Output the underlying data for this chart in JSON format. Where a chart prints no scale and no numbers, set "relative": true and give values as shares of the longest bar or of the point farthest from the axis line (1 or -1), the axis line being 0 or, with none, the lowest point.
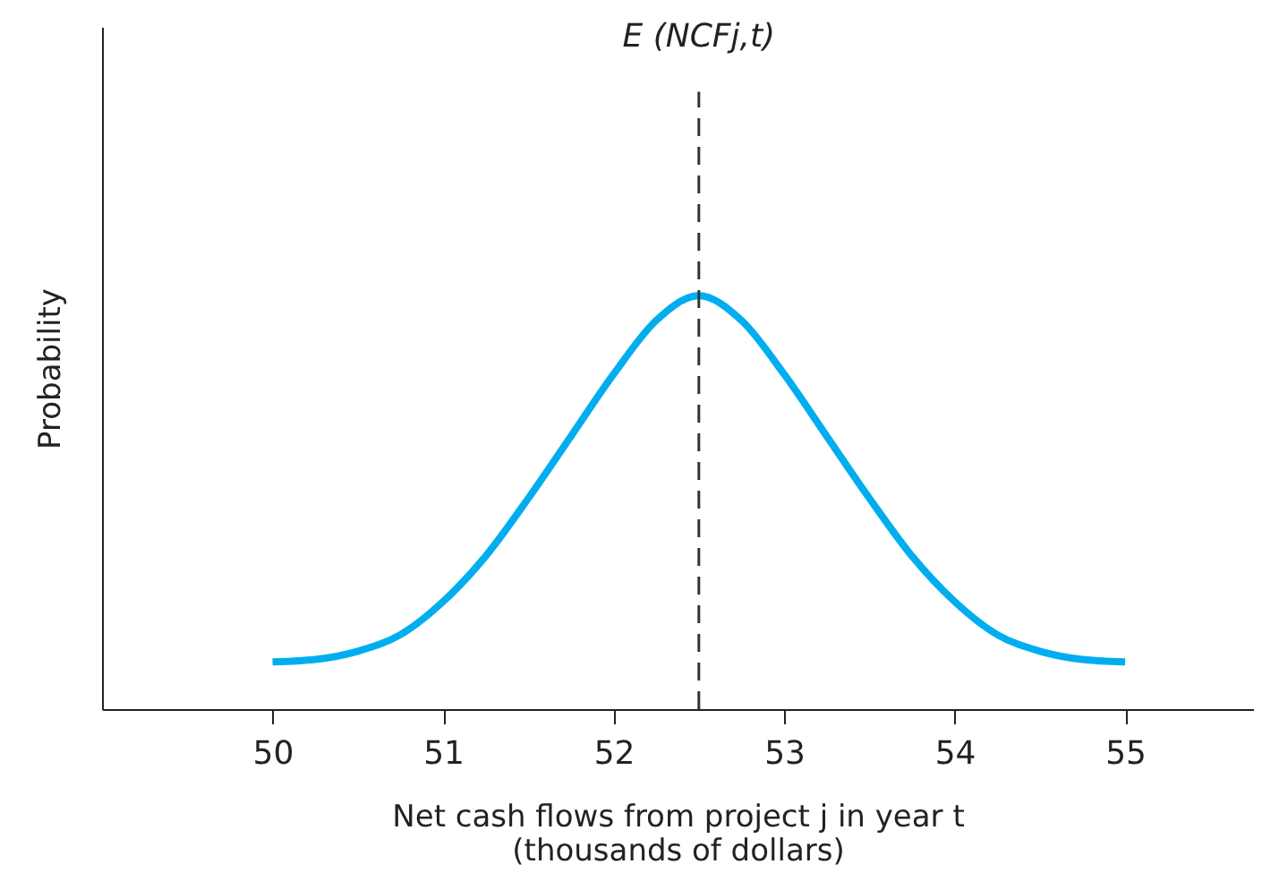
{
  "chart_data": {
    "type": "line",
    "relative": true,
    "xlabel": "Net cash flows from project j in year t\n(thousands of dollars)",
    "ylabel": "Probability",
    "x": [
      50,
      50.25,
      50.5,
      50.75,
      51,
      51.25,
      51.5,
      51.75,
      52,
      52.25,
      52.5,
      52.75,
      53,
      53.25,
      53.5,
      53.75,
      54,
      54.25,
      54.5,
      54.75,
      55
    ],
    "series": [
      {
        "color": "#00aeef",
        "values": [
          0.114,
          0.12,
          0.14,
          0.18,
          0.26,
          0.37,
          0.51,
          0.66,
          0.81,
          0.94,
          1.0,
          0.94,
          0.81,
          0.66,
          0.51,
          0.37,
          0.26,
          0.18,
          0.14,
          0.12,
          0.114
        ]
      }
    ],
    "xlim": [
      49,
      55.75
    ],
    "xticks": [
      50,
      51,
      52,
      53,
      54,
      55
    ],
    "ref_lines": [
      {
        "axis": "x",
        "value": 52.5,
        "label": "E (NCFj,t)",
        "color": "#333333",
        "line_style": "dashed"
      }
    ],
    "grid": false,
    "marker": "none",
    "line_style": "solid"
  }
}
